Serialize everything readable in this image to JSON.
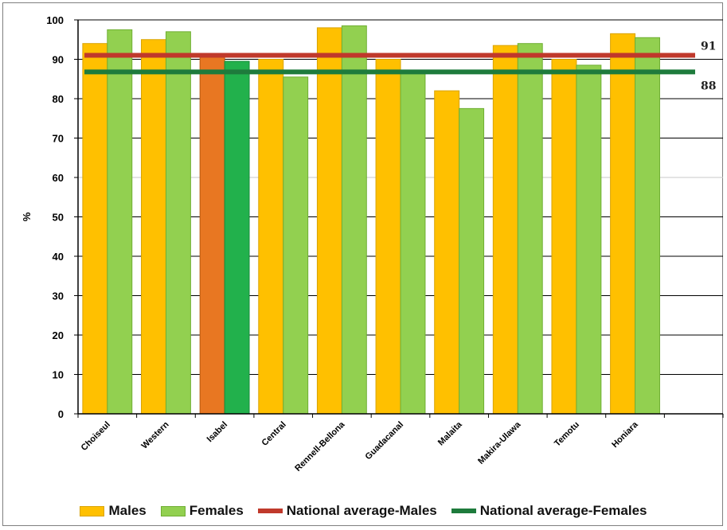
{
  "chart_data": {
    "type": "bar",
    "title": "",
    "xlabel": "",
    "ylabel": "%",
    "ylim": [
      0,
      100
    ],
    "yticks": [
      0,
      10,
      20,
      30,
      40,
      50,
      60,
      70,
      80,
      90,
      100
    ],
    "grid": true,
    "legend_position": "bottom",
    "categories": [
      "Choiseul",
      "Western",
      "Isabel",
      "Central",
      "Rennell-Bellona",
      "Guadacanal",
      "Malaita",
      "Makira-Ulawa",
      "Temotu",
      "Honiara"
    ],
    "series": [
      {
        "name": "Males",
        "color": "#FFC000",
        "values": [
          94,
          95,
          91,
          90,
          98,
          90,
          82,
          93.5,
          90,
          96.5
        ]
      },
      {
        "name": "Females",
        "color": "#92D050",
        "values": [
          97.5,
          97,
          89.5,
          85.5,
          98.5,
          87,
          77.5,
          94,
          88.5,
          95.5
        ]
      }
    ],
    "highlight": {
      "category": "Isabel",
      "colors": [
        "#E87722",
        "#22B14C"
      ]
    },
    "reference_lines": [
      {
        "name": "National average-Males",
        "value": 91,
        "label": "91",
        "color": "#C0392B"
      },
      {
        "name": "National average-Females",
        "value": 88,
        "label": "88",
        "color": "#1E7B3C"
      }
    ]
  }
}
